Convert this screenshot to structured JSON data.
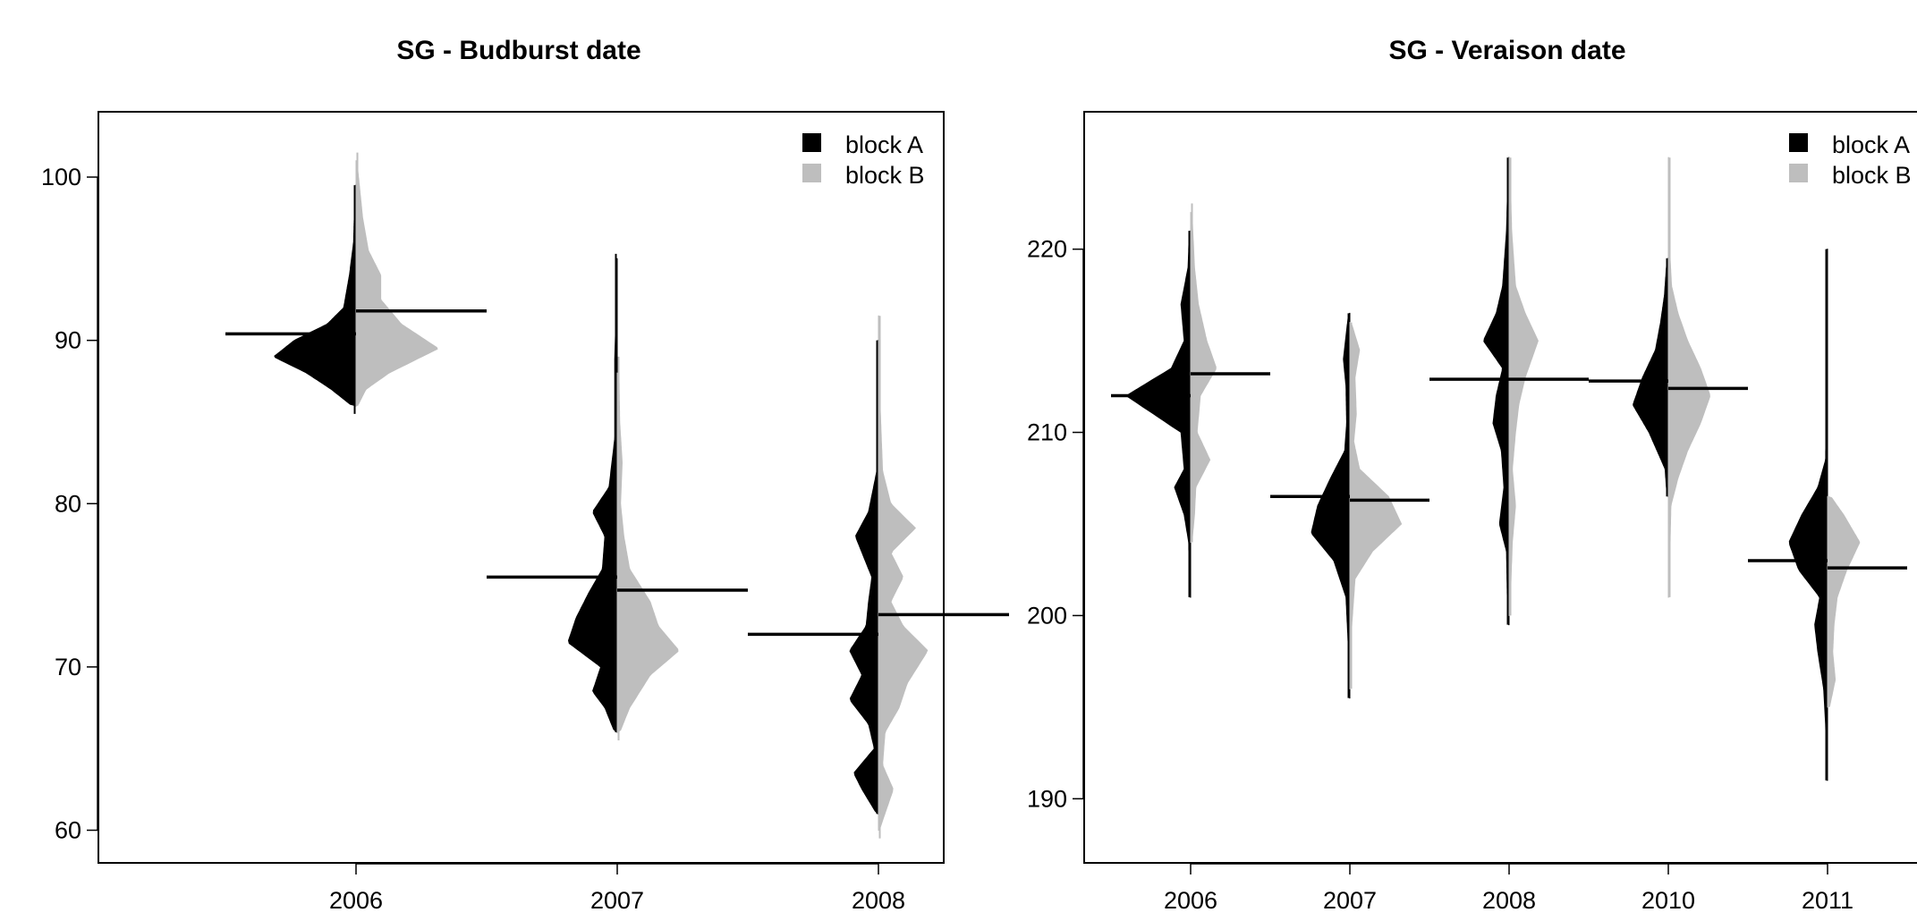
{
  "chart_data": [
    {
      "type": "violin",
      "title": "SG - Budburst date",
      "xlabel": "",
      "ylabel": "",
      "ylim": [
        58,
        104
      ],
      "yticks": [
        60,
        70,
        80,
        90,
        100
      ],
      "categories": [
        "2006",
        "2007",
        "2008"
      ],
      "legend": {
        "position": "top-right",
        "entries": [
          {
            "label": "block A",
            "color": "#000000"
          },
          {
            "label": "block B",
            "color": "#bebebe"
          }
        ]
      },
      "series": [
        {
          "name": "block A",
          "color": "#000000",
          "medians": [
            90.4,
            75.5,
            72.0
          ],
          "ranges": [
            [
              85.5,
              99.5
            ],
            [
              66.0,
              95.3
            ],
            [
              61.0,
              90.0
            ]
          ],
          "density": [
            [
              [
                86,
                0.05
              ],
              [
                87,
                0.3
              ],
              [
                88,
                0.6
              ],
              [
                89,
                1.0
              ],
              [
                90,
                0.75
              ],
              [
                91,
                0.35
              ],
              [
                92,
                0.15
              ],
              [
                94,
                0.08
              ],
              [
                96,
                0.03
              ],
              [
                99.5,
                0.01
              ]
            ],
            [
              [
                66,
                0.03
              ],
              [
                67.5,
                0.15
              ],
              [
                68.5,
                0.3
              ],
              [
                70,
                0.2
              ],
              [
                71.5,
                0.6
              ],
              [
                73,
                0.5
              ],
              [
                74.5,
                0.35
              ],
              [
                76,
                0.18
              ],
              [
                78,
                0.15
              ],
              [
                79.5,
                0.3
              ],
              [
                81,
                0.1
              ],
              [
                84,
                0.03
              ],
              [
                89,
                0.03
              ],
              [
                92,
                0.01
              ],
              [
                95,
                0.01
              ]
            ],
            [
              [
                61,
                0.02
              ],
              [
                62.5,
                0.2
              ],
              [
                63.5,
                0.3
              ],
              [
                65,
                0.05
              ],
              [
                66.5,
                0.12
              ],
              [
                68,
                0.35
              ],
              [
                69.5,
                0.2
              ],
              [
                71,
                0.35
              ],
              [
                72.5,
                0.15
              ],
              [
                74,
                0.12
              ],
              [
                75.5,
                0.08
              ],
              [
                77,
                0.2
              ],
              [
                78,
                0.28
              ],
              [
                79.5,
                0.12
              ],
              [
                82,
                0.02
              ],
              [
                88.5,
                0.02
              ],
              [
                90,
                0.01
              ]
            ]
          ]
        },
        {
          "name": "block B",
          "color": "#bebebe",
          "medians": [
            91.8,
            74.7,
            73.2
          ],
          "ranges": [
            [
              86.0,
              101.5
            ],
            [
              65.5,
              89.0
            ],
            [
              59.5,
              91.5
            ]
          ],
          "density": [
            [
              [
                86,
                0.02
              ],
              [
                87,
                0.12
              ],
              [
                88,
                0.4
              ],
              [
                89.5,
                1.0
              ],
              [
                91,
                0.55
              ],
              [
                92.5,
                0.3
              ],
              [
                94,
                0.3
              ],
              [
                95.5,
                0.15
              ],
              [
                97.5,
                0.08
              ],
              [
                101,
                0.01
              ]
            ],
            [
              [
                66,
                0.03
              ],
              [
                67.5,
                0.15
              ],
              [
                69.5,
                0.4
              ],
              [
                71,
                0.75
              ],
              [
                72.5,
                0.5
              ],
              [
                74,
                0.4
              ],
              [
                76,
                0.15
              ],
              [
                78,
                0.08
              ],
              [
                80,
                0.04
              ],
              [
                82.5,
                0.06
              ],
              [
                85,
                0.03
              ],
              [
                88,
                0.02
              ]
            ],
            [
              [
                60,
                0.01
              ],
              [
                62.5,
                0.18
              ],
              [
                64,
                0.05
              ],
              [
                66,
                0.08
              ],
              [
                67.5,
                0.25
              ],
              [
                69,
                0.35
              ],
              [
                71,
                0.6
              ],
              [
                72.5,
                0.3
              ],
              [
                74,
                0.15
              ],
              [
                75.5,
                0.3
              ],
              [
                77,
                0.15
              ],
              [
                78.5,
                0.45
              ],
              [
                80,
                0.15
              ],
              [
                82,
                0.05
              ],
              [
                86,
                0.02
              ],
              [
                89,
                0.02
              ],
              [
                91.5,
                0.01
              ]
            ]
          ]
        }
      ]
    },
    {
      "type": "violin",
      "title": "SG - Veraison date",
      "xlabel": "",
      "ylabel": "",
      "ylim": [
        186.5,
        227.5
      ],
      "yticks": [
        190,
        200,
        210,
        220
      ],
      "categories": [
        "2006",
        "2007",
        "2008",
        "2010",
        "2011"
      ],
      "legend": {
        "position": "top-right",
        "entries": [
          {
            "label": "block A",
            "color": "#000000"
          },
          {
            "label": "block B",
            "color": "#bebebe"
          }
        ]
      },
      "series": [
        {
          "name": "block A",
          "color": "#000000",
          "medians": [
            212.0,
            206.5,
            212.9,
            212.8,
            203.0
          ],
          "ranges": [
            [
              201.0,
              221.0
            ],
            [
              195.5,
              216.5
            ],
            [
              199.5,
              225.0
            ],
            [
              206.5,
              219.5
            ],
            [
              191.0,
              220.0
            ]
          ],
          "density": [
            [
              [
                201,
                0.02
              ],
              [
                204,
                0.03
              ],
              [
                205.5,
                0.1
              ],
              [
                207,
                0.25
              ],
              [
                208,
                0.1
              ],
              [
                210,
                0.15
              ],
              [
                212,
                1.0
              ],
              [
                213.5,
                0.3
              ],
              [
                215,
                0.1
              ],
              [
                217,
                0.15
              ],
              [
                219,
                0.04
              ],
              [
                221,
                0.02
              ]
            ],
            [
              [
                195.5,
                0.01
              ],
              [
                198,
                0.02
              ],
              [
                201,
                0.06
              ],
              [
                203,
                0.25
              ],
              [
                204.5,
                0.6
              ],
              [
                206,
                0.5
              ],
              [
                207.5,
                0.3
              ],
              [
                209,
                0.08
              ],
              [
                210.5,
                0.05
              ],
              [
                212.5,
                0.06
              ],
              [
                214,
                0.1
              ],
              [
                216.5,
                0.02
              ]
            ],
            [
              [
                199.5,
                0.02
              ],
              [
                203.5,
                0.04
              ],
              [
                205,
                0.15
              ],
              [
                207,
                0.08
              ],
              [
                209,
                0.12
              ],
              [
                210.5,
                0.25
              ],
              [
                212,
                0.2
              ],
              [
                213.5,
                0.1
              ],
              [
                215,
                0.4
              ],
              [
                216.5,
                0.2
              ],
              [
                218,
                0.1
              ],
              [
                221,
                0.04
              ],
              [
                225,
                0.01
              ]
            ],
            [
              [
                206.5,
                0.02
              ],
              [
                208,
                0.05
              ],
              [
                210,
                0.3
              ],
              [
                211.5,
                0.55
              ],
              [
                213,
                0.4
              ],
              [
                214.5,
                0.2
              ],
              [
                216,
                0.12
              ],
              [
                217.5,
                0.06
              ],
              [
                219.5,
                0.02
              ]
            ],
            [
              [
                191,
                0.01
              ],
              [
                194,
                0.03
              ],
              [
                196,
                0.06
              ],
              [
                198,
                0.15
              ],
              [
                199.5,
                0.2
              ],
              [
                201,
                0.12
              ],
              [
                202.5,
                0.45
              ],
              [
                204,
                0.6
              ],
              [
                205.5,
                0.4
              ],
              [
                207,
                0.15
              ],
              [
                208.5,
                0.03
              ],
              [
                215,
                0.01
              ],
              [
                220,
                0.01
              ]
            ]
          ]
        },
        {
          "name": "block B",
          "color": "#bebebe",
          "medians": [
            213.2,
            206.3,
            212.9,
            212.4,
            202.6
          ],
          "ranges": [
            [
              204.0,
              222.5
            ],
            [
              196.0,
              216.0
            ],
            [
              200.0,
              225.0
            ],
            [
              201.0,
              225.0
            ],
            [
              195.0,
              206.5
            ]
          ],
          "density": [
            [
              [
                204,
                0.02
              ],
              [
                205.5,
                0.06
              ],
              [
                207,
                0.08
              ],
              [
                208.5,
                0.3
              ],
              [
                210,
                0.1
              ],
              [
                212,
                0.15
              ],
              [
                213.5,
                0.4
              ],
              [
                215,
                0.25
              ],
              [
                217,
                0.12
              ],
              [
                219,
                0.06
              ],
              [
                222,
                0.02
              ]
            ],
            [
              [
                196,
                0.01
              ],
              [
                199,
                0.02
              ],
              [
                202,
                0.08
              ],
              [
                203.5,
                0.35
              ],
              [
                205,
                0.8
              ],
              [
                206.5,
                0.6
              ],
              [
                208,
                0.15
              ],
              [
                209.5,
                0.06
              ],
              [
                211,
                0.1
              ],
              [
                213,
                0.08
              ],
              [
                214.5,
                0.15
              ],
              [
                216,
                0.02
              ]
            ],
            [
              [
                200,
                0.01
              ],
              [
                204,
                0.05
              ],
              [
                206,
                0.1
              ],
              [
                208,
                0.05
              ],
              [
                210,
                0.1
              ],
              [
                211.5,
                0.15
              ],
              [
                213,
                0.25
              ],
              [
                215,
                0.45
              ],
              [
                216.5,
                0.25
              ],
              [
                218,
                0.1
              ],
              [
                221,
                0.04
              ],
              [
                225,
                0.01
              ]
            ],
            [
              [
                201,
                0.01
              ],
              [
                206,
                0.04
              ],
              [
                207.5,
                0.15
              ],
              [
                209,
                0.3
              ],
              [
                210.5,
                0.5
              ],
              [
                212,
                0.65
              ],
              [
                213.5,
                0.5
              ],
              [
                215,
                0.3
              ],
              [
                216.5,
                0.15
              ],
              [
                218,
                0.05
              ],
              [
                220,
                0.02
              ],
              [
                225,
                0.01
              ]
            ],
            [
              [
                195,
                0.03
              ],
              [
                196.5,
                0.12
              ],
              [
                198,
                0.08
              ],
              [
                199.5,
                0.1
              ],
              [
                201,
                0.15
              ],
              [
                202.5,
                0.3
              ],
              [
                204,
                0.5
              ],
              [
                205.5,
                0.25
              ],
              [
                206.5,
                0.05
              ]
            ]
          ]
        }
      ]
    }
  ]
}
